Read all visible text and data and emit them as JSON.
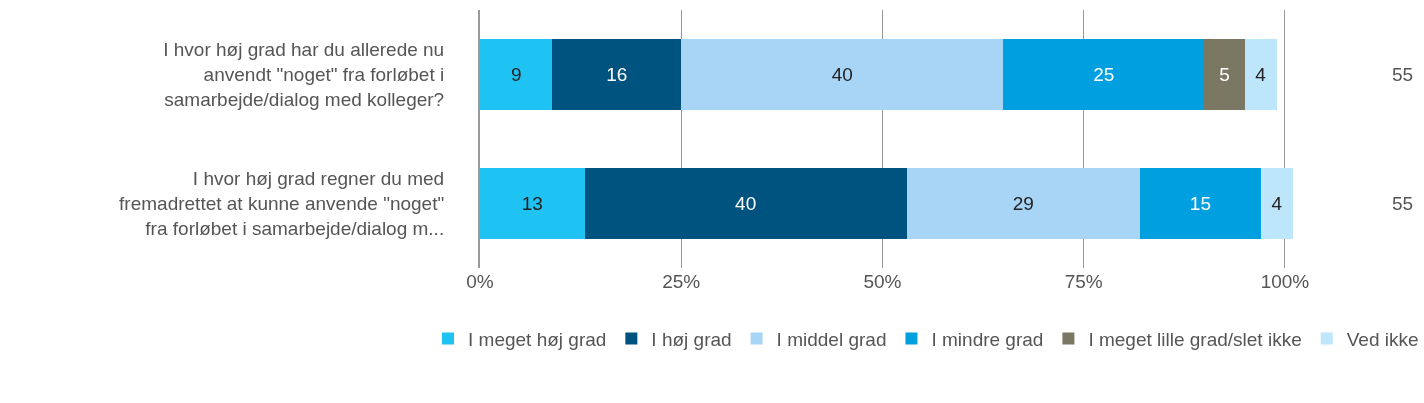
{
  "chart_data": {
    "type": "bar",
    "orientation": "horizontal",
    "stacked": true,
    "data_labels": true,
    "grid": "x",
    "legend": "bottom",
    "categories": [
      "I hvor høj grad har du allerede nu anvendt \"noget\" fra forløbet i samarbejde/dialog med kolleger?",
      "I hvor høj grad regner du med fremadrettet at kunne anvende \"noget\" fra forløbet i samarbejde/dialog m..."
    ],
    "series": [
      {
        "name": "I meget høj grad",
        "color": "#1fc3f3",
        "values": [
          9,
          13
        ]
      },
      {
        "name": "I høj grad",
        "color": "#00527f",
        "values": [
          16,
          40
        ]
      },
      {
        "name": "I middel grad",
        "color": "#a8d4f5",
        "values": [
          40,
          29
        ]
      },
      {
        "name": "I mindre grad",
        "color": "#009fe0",
        "values": [
          25,
          15
        ]
      },
      {
        "name": "I meget lille grad/slet ikke",
        "color": "#7a7762",
        "values": [
          5,
          null
        ]
      },
      {
        "name": "Ved ikke",
        "color": "#bde6fb",
        "values": [
          4,
          4
        ]
      }
    ],
    "xlim": [
      0,
      101
    ],
    "xticks": [
      {
        "value": 0,
        "label": "0%"
      },
      {
        "value": 25,
        "label": "25%"
      },
      {
        "value": 50,
        "label": "50%"
      },
      {
        "value": 75,
        "label": "75%"
      },
      {
        "value": 100,
        "label": "100%"
      }
    ],
    "annotations": [
      "55",
      "55"
    ]
  }
}
